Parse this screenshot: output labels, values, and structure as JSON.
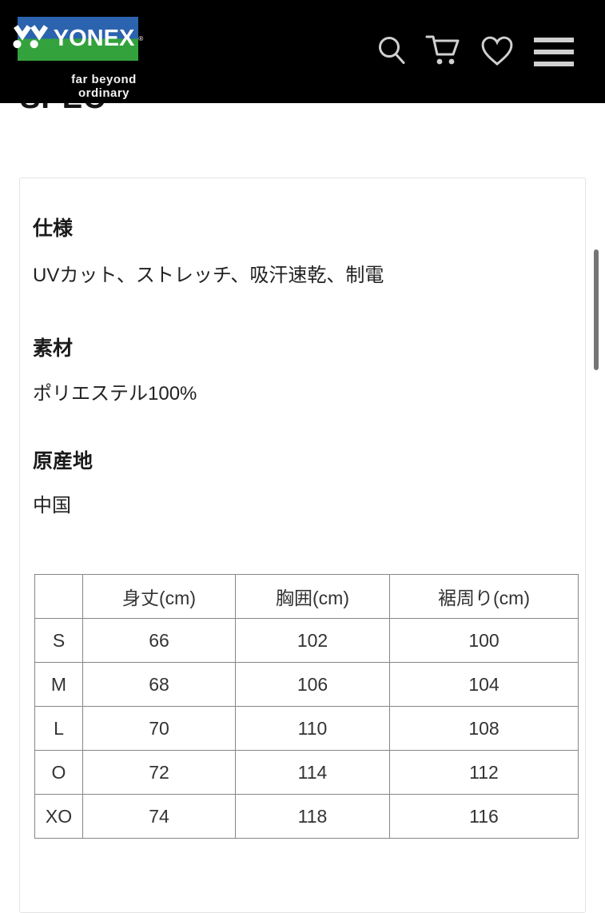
{
  "colors": {
    "header-bg": "#000000",
    "logo-blue": "#2b63ae",
    "logo-green": "#33a23c",
    "icon": "#d0d0d0",
    "heading-text": "#1a1a1a",
    "body-text": "#222222",
    "table-border": "#868686",
    "table-text": "#333333",
    "card-border": "#e3e3e3",
    "scrollbar": "#757575"
  },
  "header": {
    "logo_text": "YONEX",
    "registered_mark": "®",
    "tagline": "far beyond ordinary",
    "icons": [
      "search-icon",
      "cart-icon",
      "heart-icon",
      "menu-icon"
    ]
  },
  "page": {
    "section_heading": "SPEC"
  },
  "sections": [
    {
      "heading": "仕様",
      "body": "UVカット、ストレッチ、吸汗速乾、制電"
    },
    {
      "heading": "素材",
      "body": "ポリエステル100%"
    },
    {
      "heading": "原産地",
      "body": "中国"
    }
  ],
  "spec_table": {
    "columns": [
      "",
      "身丈(cm)",
      "胸囲(cm)",
      "裾周り(cm)"
    ],
    "rows": [
      {
        "size": "S",
        "values": [
          "66",
          "102",
          "100"
        ]
      },
      {
        "size": "M",
        "values": [
          "68",
          "106",
          "104"
        ]
      },
      {
        "size": "L",
        "values": [
          "70",
          "110",
          "108"
        ]
      },
      {
        "size": "O",
        "values": [
          "72",
          "114",
          "112"
        ]
      },
      {
        "size": "XO",
        "values": [
          "74",
          "118",
          "116"
        ]
      }
    ]
  }
}
